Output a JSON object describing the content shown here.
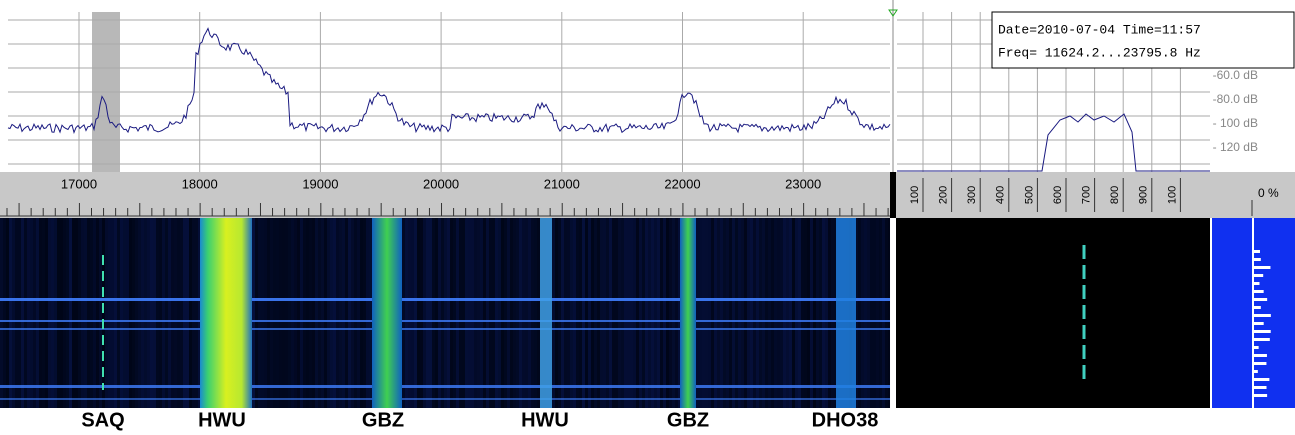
{
  "spectrum": {
    "freq_labels": [
      "17000",
      "18000",
      "19000",
      "20000",
      "21000",
      "22000",
      "23000"
    ],
    "db_labels": [
      "-60.0 dB",
      "-80.0 dB",
      "- 100 dB",
      "- 120 dB"
    ]
  },
  "info": {
    "date_time": "Date=2010-07-04 Time=11:57",
    "freq": "Freq= 11624.2...23795.8 Hz"
  },
  "scale": {
    "labels": [
      "100",
      "200",
      "300",
      "400",
      "500",
      "600",
      "700",
      "800",
      "900",
      "100"
    ],
    "percent": "0 %"
  },
  "stations": [
    "SAQ",
    "HWU",
    "GBZ",
    "HWU",
    "GBZ",
    "DHO38"
  ]
}
